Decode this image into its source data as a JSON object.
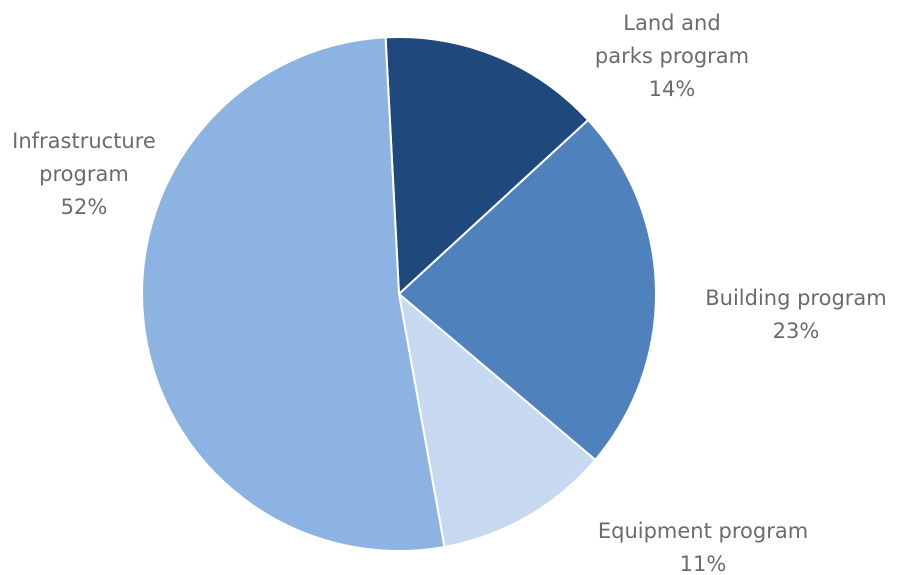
{
  "chart_data": {
    "type": "pie",
    "start_angle_deg": -3,
    "direction": "clockwise",
    "slices": [
      {
        "label_lines": [
          "Land and",
          "parks program"
        ],
        "percent_label": "14%",
        "value": 14,
        "color": "#1f497d"
      },
      {
        "label_lines": [
          "Building program"
        ],
        "percent_label": "23%",
        "value": 23,
        "color": "#4f81bd"
      },
      {
        "label_lines": [
          "Equipment program"
        ],
        "percent_label": "11%",
        "value": 11,
        "color": "#c6d9f1"
      },
      {
        "label_lines": [
          "Infrastructure",
          "program"
        ],
        "percent_label": "52%",
        "value": 52,
        "color": "#8db3e2"
      }
    ]
  }
}
